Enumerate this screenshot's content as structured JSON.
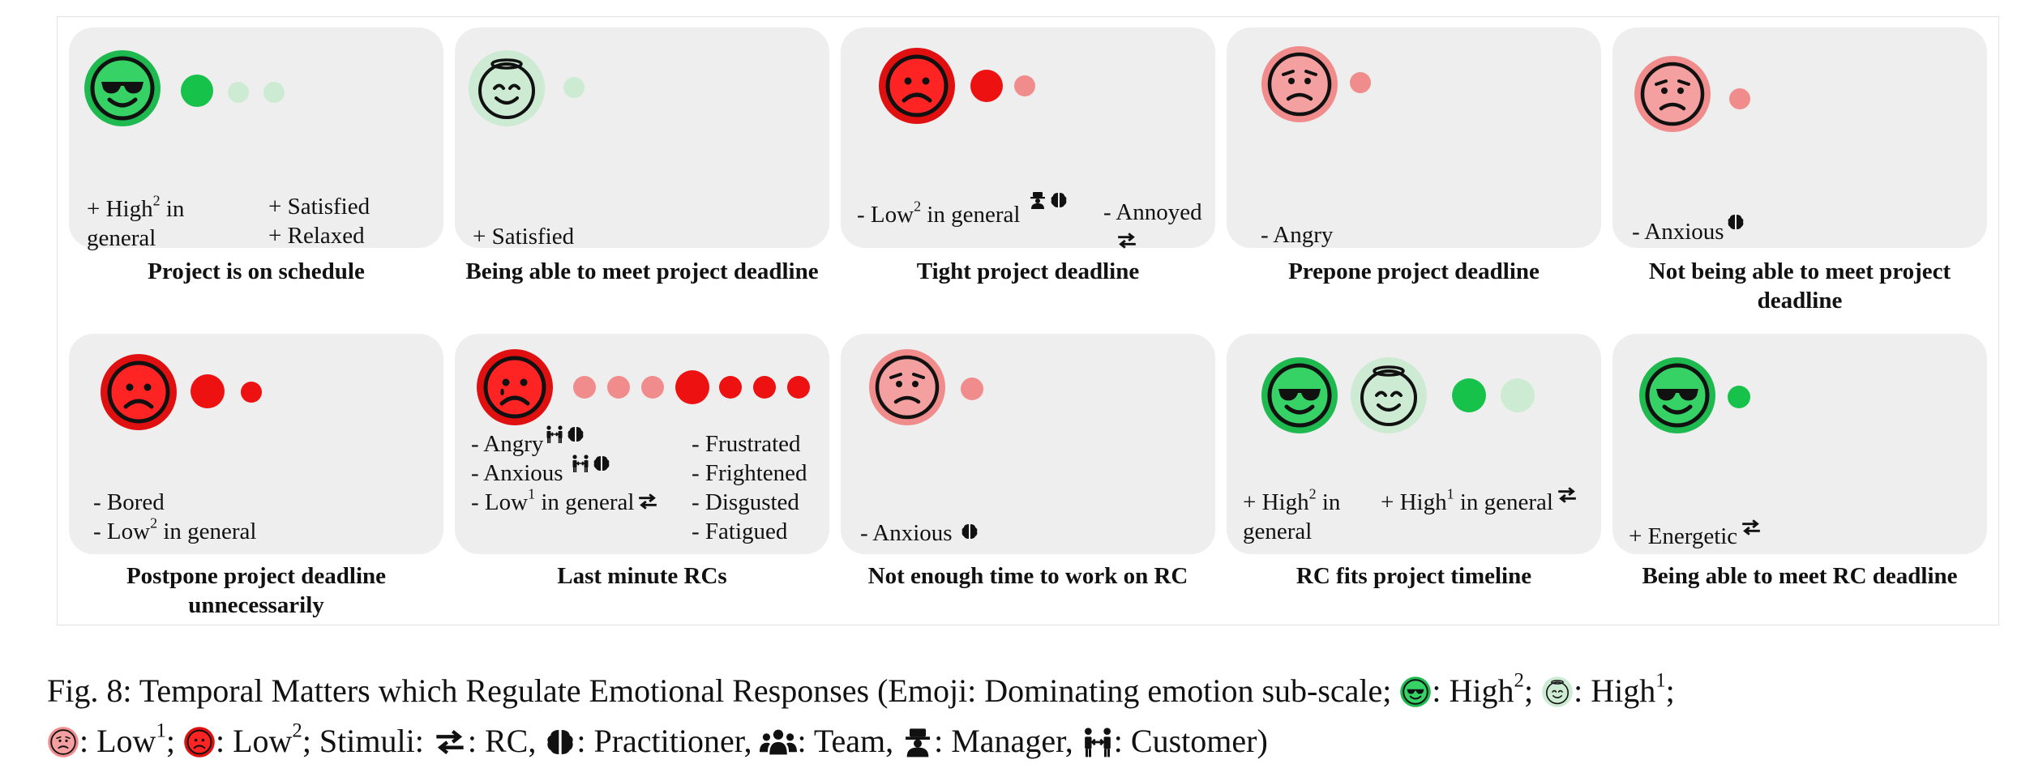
{
  "colors": {
    "high2": "#17c24b",
    "high1": "#cdebd3",
    "low1": "#f08c8c",
    "low2": "#ee1111",
    "card": "#eeeeee"
  },
  "cards": [
    {
      "title": "Project is on schedule",
      "emoji": "high2-cool-face-icon",
      "dots": [
        "high2",
        "high1",
        "high1"
      ],
      "left_lines": [
        "+ High",
        "general"
      ],
      "right_lines": [
        "+ Satisfied",
        "+ Relaxed"
      ]
    },
    {
      "title": "Being able to meet project deadline",
      "emoji": "high1-halo-face-icon",
      "dots": [
        "high1"
      ],
      "lines": [
        "+ Satisfied"
      ]
    },
    {
      "title": "Tight project deadline",
      "emoji": "low2-frown-face-icon",
      "dots": [
        "low2",
        "low1"
      ],
      "left_lines": [
        "- Low",
        "in general"
      ],
      "right_lines": [
        "- Annoyed"
      ]
    },
    {
      "title": "Prepone project deadline",
      "emoji": "low1-worried-face-icon",
      "dots": [
        "low1"
      ],
      "lines": [
        "- Angry"
      ]
    },
    {
      "title": "Not being able to meet project deadline",
      "emoji": "low1-worried-face-icon",
      "dots": [
        "low1"
      ],
      "lines": [
        "- Anxious"
      ]
    },
    {
      "title": "Postpone project deadline unnecessarily",
      "emoji": "low2-frown-face-icon",
      "dots": [
        "low2",
        "low2"
      ],
      "lines": [
        "- Bored",
        "- Low",
        "in general"
      ]
    },
    {
      "title": "Last minute RCs",
      "emoji": "low2-crying-face-icon",
      "dots": [
        "low1",
        "low1",
        "low1",
        "low2",
        "low2",
        "low2",
        "low2"
      ],
      "left_lines": [
        "- Angry",
        "- Anxious",
        "- Low",
        "in general"
      ],
      "right_lines": [
        "- Frustrated",
        "- Frightened",
        "- Disgusted",
        "- Fatigued"
      ]
    },
    {
      "title": "Not enough time to work on RC",
      "emoji": "low1-worried-face-icon",
      "dots": [
        "low1"
      ],
      "lines": [
        "- Anxious"
      ]
    },
    {
      "title": "RC fits project timeline",
      "emoji": "high2-cool-face-icon",
      "dots": [
        "high2",
        "high1"
      ],
      "left_lines": [
        "+ High",
        "general"
      ],
      "right_lines": [
        "+ High",
        "in general"
      ]
    },
    {
      "title": "Being able to meet RC deadline",
      "emoji": "high2-cool-face-icon",
      "dots": [
        "high2"
      ],
      "lines": [
        "+ Energetic"
      ]
    }
  ],
  "sup": {
    "one": "1",
    "two": "2",
    "in_word": "in"
  },
  "caption": {
    "line1_a": "Fig. 8: Temporal Matters which Regulate Emotional Responses (Emoji: Dominating emotion sub-scale; ",
    "high2_label": ": High",
    "high1_label": ": High",
    "sep": ";",
    "line2_low1": ": Low",
    "line2_low2": ": Low",
    "stimuli": "; Stimuli: ",
    "rc": ": RC, ",
    "practitioner": ": Practitioner, ",
    "team": ": Team, ",
    "manager": ": Manager, ",
    "customer": ": Customer)"
  }
}
